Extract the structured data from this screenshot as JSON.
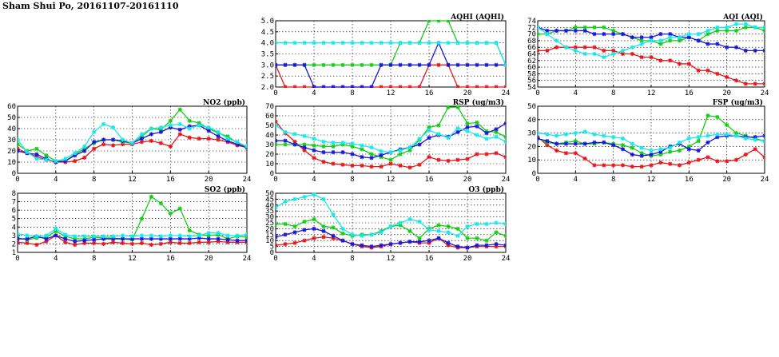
{
  "page": {
    "title": "Sham Shui Po, 20161107-20161110"
  },
  "series_colors": {
    "red": "#e8161b",
    "green": "#13cf13",
    "blue": "#1717e0",
    "cyan": "#16e8ec"
  },
  "chart_data": [
    {
      "type": "line",
      "title": "NO2 (ppb)",
      "xlim": [
        0,
        24
      ],
      "xticks": [
        0,
        4,
        8,
        12,
        16,
        20,
        24
      ],
      "ylim": [
        0,
        60
      ],
      "yticks": [
        0,
        10,
        20,
        30,
        40,
        50,
        60
      ],
      "grid": true,
      "x": [
        0,
        1,
        2,
        3,
        4,
        5,
        6,
        7,
        8,
        9,
        10,
        11,
        12,
        13,
        14,
        15,
        16,
        17,
        18,
        19,
        20,
        21,
        22,
        23,
        24
      ],
      "series": [
        {
          "color": "red",
          "values": [
            22,
            18,
            15,
            12,
            10,
            10,
            11,
            14,
            22,
            26,
            25,
            26,
            26,
            28,
            29,
            27,
            24,
            35,
            32,
            31,
            31,
            30,
            28,
            25,
            23
          ]
        },
        {
          "color": "green",
          "values": [
            26,
            20,
            22,
            16,
            11,
            11,
            17,
            22,
            27,
            30,
            30,
            28,
            27,
            33,
            40,
            39,
            47,
            57,
            47,
            45,
            40,
            36,
            33,
            27,
            23
          ]
        },
        {
          "color": "blue",
          "values": [
            20,
            18,
            17,
            13,
            10,
            11,
            16,
            20,
            28,
            30,
            30,
            29,
            27,
            31,
            35,
            37,
            41,
            39,
            42,
            43,
            38,
            33,
            29,
            26,
            23
          ]
        },
        {
          "color": "cyan",
          "values": [
            30,
            19,
            13,
            12,
            11,
            13,
            18,
            24,
            37,
            44,
            41,
            30,
            27,
            35,
            40,
            41,
            43,
            44,
            40,
            43,
            41,
            37,
            31,
            28,
            24
          ]
        }
      ]
    },
    {
      "type": "line",
      "title": "SO2 (ppb)",
      "xlim": [
        0,
        24
      ],
      "xticks": [
        0,
        4,
        8,
        12,
        16,
        20,
        24
      ],
      "ylim": [
        1,
        8
      ],
      "yticks": [
        1,
        2,
        3,
        4,
        5,
        6,
        7,
        8
      ],
      "grid": true,
      "x": [
        0,
        1,
        2,
        3,
        4,
        5,
        6,
        7,
        8,
        9,
        10,
        11,
        12,
        13,
        14,
        15,
        16,
        17,
        18,
        19,
        20,
        21,
        22,
        23,
        24
      ],
      "series": [
        {
          "color": "red",
          "values": [
            2.2,
            2.1,
            1.9,
            2.3,
            3.0,
            2.2,
            1.9,
            2.1,
            2.1,
            2.0,
            2.2,
            2.1,
            2.0,
            2.1,
            1.9,
            2.0,
            2.2,
            2.1,
            2.1,
            2.2,
            2.2,
            2.3,
            2.2,
            2.2,
            2.2
          ]
        },
        {
          "color": "green",
          "values": [
            2.7,
            2.5,
            2.7,
            2.8,
            3.5,
            2.9,
            2.6,
            2.6,
            2.8,
            2.7,
            2.7,
            2.6,
            2.5,
            5.0,
            7.6,
            6.8,
            5.6,
            6.2,
            3.6,
            3.1,
            3.0,
            3.1,
            2.6,
            2.9,
            2.8
          ]
        },
        {
          "color": "blue",
          "values": [
            2.6,
            2.6,
            2.9,
            2.6,
            3.0,
            2.6,
            2.3,
            2.4,
            2.5,
            2.6,
            2.6,
            2.6,
            2.6,
            2.6,
            2.6,
            2.6,
            2.6,
            2.6,
            2.6,
            2.7,
            2.6,
            2.6,
            2.5,
            2.4,
            2.4
          ]
        },
        {
          "color": "cyan",
          "values": [
            3.2,
            3.0,
            2.9,
            3.0,
            3.8,
            3.1,
            2.9,
            2.9,
            2.9,
            2.9,
            2.9,
            3.0,
            2.9,
            3.0,
            3.0,
            2.9,
            3.0,
            3.0,
            2.9,
            3.0,
            3.3,
            3.3,
            3.0,
            3.0,
            3.1
          ]
        }
      ]
    },
    {
      "type": "line",
      "title": "AQHI (AQHI)",
      "xlim": [
        0,
        24
      ],
      "xticks": [
        0,
        4,
        8,
        12,
        16,
        20,
        24
      ],
      "ylim": [
        2.0,
        5.0
      ],
      "yticks": [
        2.0,
        2.5,
        3.0,
        3.5,
        4.0,
        4.5,
        5.0
      ],
      "grid": true,
      "x": [
        0,
        1,
        2,
        3,
        4,
        5,
        6,
        7,
        8,
        9,
        10,
        11,
        12,
        13,
        14,
        15,
        16,
        17,
        18,
        19,
        20,
        21,
        22,
        23,
        24
      ],
      "series": [
        {
          "color": "red",
          "values": [
            3,
            2,
            2,
            2,
            2,
            2,
            2,
            2,
            2,
            2,
            2,
            2,
            2,
            2,
            2,
            2,
            3,
            3,
            3,
            2,
            2,
            2,
            2,
            2,
            2
          ]
        },
        {
          "color": "green",
          "values": [
            3,
            3,
            3,
            3,
            3,
            3,
            3,
            3,
            3,
            3,
            3,
            3,
            3,
            4,
            4,
            4,
            5,
            5,
            5,
            4,
            4,
            4,
            4,
            4,
            3
          ]
        },
        {
          "color": "blue",
          "values": [
            3,
            3,
            3,
            3,
            2,
            2,
            2,
            2,
            2,
            2,
            2,
            3,
            3,
            3,
            3,
            3,
            3,
            4,
            3,
            3,
            3,
            3,
            3,
            3,
            3
          ]
        },
        {
          "color": "cyan",
          "values": [
            4,
            4,
            4,
            4,
            4,
            4,
            4,
            4,
            4,
            4,
            4,
            4,
            4,
            4,
            4,
            4,
            4,
            4,
            4,
            4,
            4,
            4,
            4,
            4,
            3
          ]
        }
      ]
    },
    {
      "type": "line",
      "title": "RSP (ug/m3)",
      "xlim": [
        0,
        24
      ],
      "xticks": [
        0,
        4,
        8,
        12,
        16,
        20,
        24
      ],
      "ylim": [
        0,
        70
      ],
      "yticks": [
        0,
        10,
        20,
        30,
        40,
        50,
        60,
        70
      ],
      "grid": true,
      "x": [
        0,
        1,
        2,
        3,
        4,
        5,
        6,
        7,
        8,
        9,
        10,
        11,
        12,
        13,
        14,
        15,
        16,
        17,
        18,
        19,
        20,
        21,
        22,
        23,
        24
      ],
      "series": [
        {
          "color": "red",
          "values": [
            54,
            42,
            33,
            24,
            16,
            12,
            10,
            9,
            8,
            8,
            7,
            7,
            10,
            8,
            6,
            9,
            17,
            14,
            13,
            14,
            15,
            20,
            20,
            21,
            17
          ]
        },
        {
          "color": "green",
          "values": [
            30,
            30,
            30,
            30,
            29,
            28,
            28,
            30,
            28,
            25,
            20,
            17,
            14,
            20,
            24,
            35,
            48,
            50,
            69,
            69,
            52,
            53,
            44,
            43,
            38
          ]
        },
        {
          "color": "blue",
          "values": [
            34,
            34,
            30,
            27,
            24,
            22,
            22,
            22,
            20,
            17,
            16,
            19,
            22,
            25,
            27,
            30,
            37,
            40,
            38,
            43,
            48,
            49,
            42,
            46,
            52
          ]
        },
        {
          "color": "cyan",
          "values": [
            50,
            43,
            41,
            39,
            36,
            33,
            32,
            32,
            31,
            29,
            27,
            23,
            22,
            24,
            27,
            36,
            45,
            41,
            37,
            47,
            44,
            40,
            36,
            38,
            33
          ]
        }
      ]
    },
    {
      "type": "line",
      "title": "O3 (ppb)",
      "xlim": [
        0,
        24
      ],
      "xticks": [
        0,
        4,
        8,
        12,
        16,
        20,
        24
      ],
      "ylim": [
        0,
        50
      ],
      "yticks": [
        0,
        5,
        10,
        15,
        20,
        25,
        30,
        35,
        40,
        45,
        50
      ],
      "grid": true,
      "x": [
        0,
        1,
        2,
        3,
        4,
        5,
        6,
        7,
        8,
        9,
        10,
        11,
        12,
        13,
        14,
        15,
        16,
        17,
        18,
        19,
        20,
        21,
        22,
        23,
        24
      ],
      "series": [
        {
          "color": "red",
          "values": [
            6,
            7,
            8,
            10,
            12,
            13,
            12,
            10,
            7,
            5,
            4,
            5,
            7,
            8,
            9,
            8,
            8,
            12,
            6,
            4,
            4,
            5,
            5,
            5,
            5
          ]
        },
        {
          "color": "green",
          "values": [
            24,
            24,
            22,
            26,
            28,
            22,
            21,
            16,
            14,
            15,
            15,
            18,
            22,
            23,
            18,
            12,
            20,
            23,
            22,
            20,
            12,
            12,
            10,
            17,
            14
          ]
        },
        {
          "color": "blue",
          "values": [
            13,
            15,
            17,
            19,
            20,
            18,
            14,
            10,
            7,
            6,
            5,
            6,
            7,
            8,
            9,
            9,
            10,
            12,
            8,
            5,
            4,
            6,
            6,
            7,
            6
          ]
        },
        {
          "color": "cyan",
          "values": [
            38,
            43,
            45,
            47,
            49,
            45,
            32,
            20,
            15,
            14,
            15,
            17,
            22,
            25,
            28,
            26,
            19,
            18,
            17,
            14,
            22,
            24,
            24,
            25,
            24
          ]
        }
      ]
    },
    {
      "type": "line",
      "title": "AQI (AQI)",
      "xlim": [
        0,
        24
      ],
      "xticks": [
        0,
        4,
        8,
        12,
        16,
        20,
        24
      ],
      "ylim": [
        54,
        74
      ],
      "yticks": [
        54,
        56,
        58,
        60,
        62,
        64,
        66,
        68,
        70,
        72,
        74
      ],
      "grid": true,
      "x": [
        0,
        1,
        2,
        3,
        4,
        5,
        6,
        7,
        8,
        9,
        10,
        11,
        12,
        13,
        14,
        15,
        16,
        17,
        18,
        19,
        20,
        21,
        22,
        23,
        24
      ],
      "series": [
        {
          "color": "red",
          "values": [
            65,
            65,
            66,
            66,
            66,
            66,
            66,
            65,
            65,
            64,
            64,
            63,
            63,
            62,
            62,
            61,
            61,
            59,
            59,
            58,
            57,
            56,
            55,
            55,
            55
          ]
        },
        {
          "color": "green",
          "values": [
            70,
            70,
            71,
            71,
            72,
            72,
            72,
            72,
            71,
            70,
            69,
            68,
            68,
            67,
            68,
            68,
            69,
            68,
            70,
            71,
            71,
            71,
            72,
            72,
            71
          ]
        },
        {
          "color": "blue",
          "values": [
            72,
            71,
            71,
            71,
            71,
            71,
            70,
            70,
            70,
            70,
            69,
            69,
            69,
            70,
            70,
            69,
            69,
            68,
            67,
            67,
            66,
            66,
            65,
            65,
            65
          ]
        },
        {
          "color": "cyan",
          "values": [
            72,
            70,
            68,
            66,
            65,
            64,
            64,
            63,
            64,
            65,
            66,
            67,
            68,
            68,
            69,
            69,
            70,
            70,
            71,
            72,
            72,
            73,
            73,
            72,
            72
          ]
        }
      ]
    },
    {
      "type": "line",
      "title": "FSP (ug/m3)",
      "xlim": [
        0,
        24
      ],
      "xticks": [
        0,
        4,
        8,
        12,
        16,
        20,
        24
      ],
      "ylim": [
        0,
        50
      ],
      "yticks": [
        0,
        10,
        20,
        30,
        40,
        50
      ],
      "grid": true,
      "x": [
        0,
        1,
        2,
        3,
        4,
        5,
        6,
        7,
        8,
        9,
        10,
        11,
        12,
        13,
        14,
        15,
        16,
        17,
        18,
        19,
        20,
        21,
        22,
        23,
        24
      ],
      "series": [
        {
          "color": "red",
          "values": [
            27,
            21,
            17,
            15,
            15,
            11,
            6,
            6,
            6,
            6,
            5,
            5,
            6,
            8,
            7,
            6,
            8,
            10,
            12,
            9,
            9,
            10,
            14,
            18,
            12
          ]
        },
        {
          "color": "green",
          "values": [
            26,
            23,
            22,
            23,
            24,
            22,
            22,
            23,
            22,
            21,
            19,
            15,
            13,
            14,
            16,
            17,
            20,
            24,
            43,
            42,
            36,
            30,
            28,
            26,
            24
          ]
        },
        {
          "color": "blue",
          "values": [
            26,
            24,
            22,
            22,
            22,
            22,
            23,
            23,
            21,
            18,
            14,
            13,
            14,
            16,
            20,
            22,
            18,
            17,
            23,
            27,
            28,
            28,
            27,
            27,
            28
          ]
        },
        {
          "color": "cyan",
          "values": [
            30,
            29,
            28,
            29,
            30,
            31,
            29,
            28,
            27,
            26,
            22,
            19,
            17,
            18,
            19,
            23,
            26,
            27,
            28,
            29,
            29,
            28,
            26,
            25,
            24
          ]
        }
      ]
    }
  ]
}
